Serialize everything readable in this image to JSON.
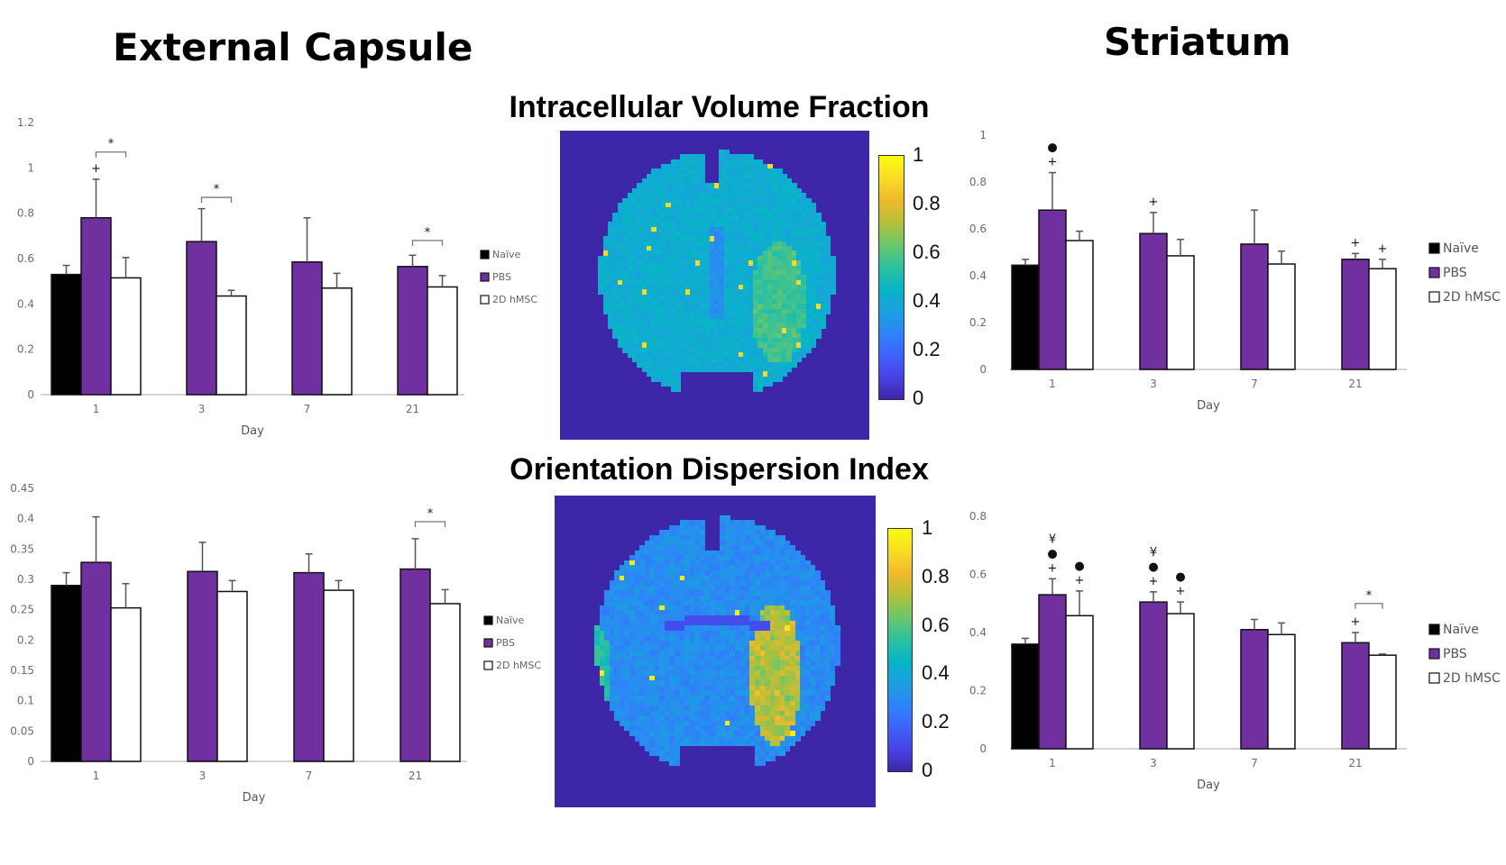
{
  "headings": {
    "left": "External Capsule",
    "right": "Striatum",
    "map_top": "Intracellular Volume Fraction",
    "map_bottom": "Orientation Dispersion Index"
  },
  "colors": {
    "naive": "#000000",
    "pbs": "#7030a0",
    "hmsc": "#ffffff",
    "map_background": "#3d26a8",
    "colormap": [
      "#3e26a8",
      "#4743e4",
      "#3f63fd",
      "#2d85f7",
      "#1aa0df",
      "#08b5c5",
      "#2ec19e",
      "#6cc66b",
      "#b6bf39",
      "#efb92c",
      "#fadd22",
      "#f9fb0e"
    ]
  },
  "legend": [
    "Naïve",
    "PBS",
    "2D hMSC"
  ],
  "colorbars": {
    "top": {
      "ticks": [
        "0",
        "0.2",
        "0.4",
        "0.6",
        "0.8",
        "1"
      ],
      "range": [
        0,
        1
      ]
    },
    "bottom": {
      "ticks": [
        "0",
        "0.2",
        "0.4",
        "0.6",
        "0.8",
        "1"
      ],
      "range": [
        0,
        1
      ]
    }
  },
  "chart_data": [
    {
      "id": "ec-icvf",
      "type": "bar",
      "title": "External Capsule - Intracellular Volume Fraction",
      "xlabel": "Day",
      "ylabel": "",
      "categories": [
        "1",
        "3",
        "7",
        "21"
      ],
      "ylim": [
        0,
        1.2
      ],
      "yticks": [
        "0",
        "0.2",
        "0.4",
        "0.6",
        "0.8",
        "1",
        "1.2"
      ],
      "ytick_values": [
        0,
        0.2,
        0.4,
        0.6,
        0.8,
        1.0,
        1.2
      ],
      "legend_position": "right",
      "grid": false,
      "series": [
        {
          "name": "Naïve",
          "values": [
            0.53,
            null,
            null,
            null
          ],
          "errors": [
            0.04,
            null,
            null,
            null
          ]
        },
        {
          "name": "PBS",
          "values": [
            0.78,
            0.675,
            0.585,
            0.565
          ],
          "errors": [
            0.17,
            0.145,
            0.195,
            0.05
          ]
        },
        {
          "name": "2D hMSC",
          "values": [
            0.515,
            0.435,
            0.47,
            0.475
          ],
          "errors": [
            0.09,
            0.025,
            0.065,
            0.05
          ]
        }
      ],
      "annotations": [
        {
          "category": "1",
          "series": "PBS",
          "marks": [
            "+"
          ]
        },
        {
          "category": "1",
          "bracket": [
            "PBS",
            "2D hMSC"
          ],
          "label": "*",
          "y": 1.07
        },
        {
          "category": "3",
          "bracket": [
            "PBS",
            "2D hMSC"
          ],
          "label": "*",
          "y": 0.87
        },
        {
          "category": "21",
          "bracket": [
            "PBS",
            "2D hMSC"
          ],
          "label": "*",
          "y": 0.68
        }
      ]
    },
    {
      "id": "ec-odi",
      "type": "bar",
      "title": "External Capsule - Orientation Dispersion Index",
      "xlabel": "Day",
      "ylabel": "",
      "categories": [
        "1",
        "3",
        "7",
        "21"
      ],
      "ylim": [
        0,
        0.45
      ],
      "yticks": [
        "0",
        "0.05",
        "0.1",
        "0.15",
        "0.2",
        "0.25",
        "0.3",
        "0.35",
        "0.4",
        "0.45"
      ],
      "ytick_values": [
        0,
        0.05,
        0.1,
        0.15,
        0.2,
        0.25,
        0.3,
        0.35,
        0.4,
        0.45
      ],
      "legend_position": "right",
      "grid": false,
      "series": [
        {
          "name": "Naïve",
          "values": [
            0.29,
            null,
            null,
            null
          ],
          "errors": [
            0.021,
            null,
            null,
            null
          ]
        },
        {
          "name": "PBS",
          "values": [
            0.328,
            0.313,
            0.311,
            0.317
          ],
          "errors": [
            0.075,
            0.048,
            0.031,
            0.05
          ]
        },
        {
          "name": "2D hMSC",
          "values": [
            0.253,
            0.28,
            0.282,
            0.26
          ],
          "errors": [
            0.04,
            0.018,
            0.016,
            0.023
          ]
        }
      ],
      "annotations": [
        {
          "category": "21",
          "bracket": [
            "PBS",
            "2D hMSC"
          ],
          "label": "*",
          "y": 0.395
        }
      ]
    },
    {
      "id": "st-icvf",
      "type": "bar",
      "title": "Striatum - Intracellular Volume Fraction",
      "xlabel": "Day",
      "ylabel": "",
      "categories": [
        "1",
        "3",
        "7",
        "21"
      ],
      "ylim": [
        0,
        1
      ],
      "yticks": [
        "0",
        "0.2",
        "0.4",
        "0.6",
        "0.8",
        "1"
      ],
      "ytick_values": [
        0,
        0.2,
        0.4,
        0.6,
        0.8,
        1.0
      ],
      "legend_position": "right",
      "grid": false,
      "series": [
        {
          "name": "Naïve",
          "values": [
            0.445,
            null,
            null,
            null
          ],
          "errors": [
            0.025,
            null,
            null,
            null
          ]
        },
        {
          "name": "PBS",
          "values": [
            0.68,
            0.58,
            0.535,
            0.47
          ],
          "errors": [
            0.16,
            0.09,
            0.145,
            0.025
          ]
        },
        {
          "name": "2D hMSC",
          "values": [
            0.55,
            0.485,
            0.45,
            0.43
          ],
          "errors": [
            0.04,
            0.07,
            0.055,
            0.04
          ]
        }
      ],
      "annotations": [
        {
          "category": "1",
          "series": "PBS",
          "marks": [
            "+",
            "●"
          ]
        },
        {
          "category": "3",
          "series": "PBS",
          "marks": [
            "+"
          ]
        },
        {
          "category": "21",
          "series": "PBS",
          "marks": [
            "+"
          ]
        },
        {
          "category": "21",
          "series": "2D hMSC",
          "marks": [
            "+"
          ]
        }
      ]
    },
    {
      "id": "st-odi",
      "type": "bar",
      "title": "Striatum - Orientation Dispersion Index",
      "xlabel": "Day",
      "ylabel": "",
      "categories": [
        "1",
        "3",
        "7",
        "21"
      ],
      "ylim": [
        0,
        0.8
      ],
      "yticks": [
        "0",
        "0.2",
        "0.4",
        "0.6",
        "0.8"
      ],
      "ytick_values": [
        0,
        0.2,
        0.4,
        0.6,
        0.8
      ],
      "legend_position": "right",
      "grid": false,
      "series": [
        {
          "name": "Naïve",
          "values": [
            0.36,
            null,
            null,
            null
          ],
          "errors": [
            0.02,
            null,
            null,
            null
          ]
        },
        {
          "name": "PBS",
          "values": [
            0.53,
            0.505,
            0.41,
            0.365
          ],
          "errors": [
            0.055,
            0.035,
            0.035,
            0.035
          ]
        },
        {
          "name": "2D hMSC",
          "values": [
            0.458,
            0.465,
            0.393,
            0.322
          ],
          "errors": [
            0.085,
            0.04,
            0.04,
            0.004
          ]
        }
      ],
      "annotations": [
        {
          "category": "1",
          "series": "PBS",
          "marks": [
            "+",
            "●",
            "¥"
          ]
        },
        {
          "category": "1",
          "series": "2D hMSC",
          "marks": [
            "+",
            "●"
          ]
        },
        {
          "category": "3",
          "series": "PBS",
          "marks": [
            "+",
            "●",
            "¥"
          ]
        },
        {
          "category": "3",
          "series": "2D hMSC",
          "marks": [
            "+",
            "●"
          ]
        },
        {
          "category": "21",
          "series": "PBS",
          "marks": [
            "+"
          ]
        },
        {
          "category": "21",
          "bracket": [
            "PBS",
            "2D hMSC"
          ],
          "label": "*",
          "y": 0.5
        }
      ]
    }
  ]
}
